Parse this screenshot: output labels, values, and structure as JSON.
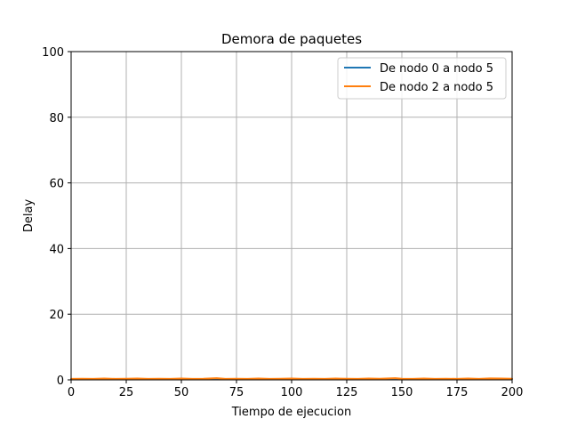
{
  "chart_data": {
    "type": "line",
    "title": "Demora de paquetes",
    "xlabel": "Tiempo de ejecucion",
    "ylabel": "Delay",
    "xlim": [
      0,
      200
    ],
    "ylim": [
      0,
      100
    ],
    "xticks": [
      0,
      25,
      50,
      75,
      100,
      125,
      150,
      175,
      200
    ],
    "yticks": [
      0,
      20,
      40,
      60,
      80,
      100
    ],
    "grid": true,
    "legend_position": "top-right",
    "series": [
      {
        "name": "De nodo 0 a nodo 5",
        "color": "#1f77b4",
        "x": [
          0,
          10,
          20,
          30,
          40,
          50,
          60,
          70,
          80,
          90,
          100,
          110,
          120,
          130,
          140,
          150,
          160,
          170,
          180,
          190,
          200
        ],
        "y": [
          0.2,
          0.2,
          0.2,
          0.2,
          0.2,
          0.2,
          0.2,
          0.2,
          0.2,
          0.2,
          0.2,
          0.2,
          0.2,
          0.2,
          0.2,
          0.2,
          0.2,
          0.2,
          0.2,
          0.2,
          0.2
        ]
      },
      {
        "name": "De nodo 2 a nodo 5",
        "color": "#ff7f0e",
        "x": [
          0,
          5,
          10,
          15,
          20,
          25,
          30,
          35,
          40,
          45,
          50,
          55,
          60,
          66,
          70,
          75,
          80,
          85,
          90,
          95,
          100,
          105,
          110,
          115,
          120,
          125,
          130,
          135,
          140,
          147,
          150,
          155,
          160,
          165,
          170,
          175,
          180,
          185,
          190,
          195,
          200
        ],
        "y": [
          0.3,
          0.35,
          0.3,
          0.4,
          0.3,
          0.35,
          0.4,
          0.3,
          0.35,
          0.3,
          0.4,
          0.3,
          0.35,
          0.5,
          0.3,
          0.35,
          0.3,
          0.4,
          0.3,
          0.35,
          0.4,
          0.3,
          0.35,
          0.3,
          0.4,
          0.35,
          0.3,
          0.4,
          0.35,
          0.5,
          0.35,
          0.3,
          0.4,
          0.3,
          0.35,
          0.3,
          0.4,
          0.3,
          0.45,
          0.4,
          0.35
        ]
      }
    ]
  }
}
